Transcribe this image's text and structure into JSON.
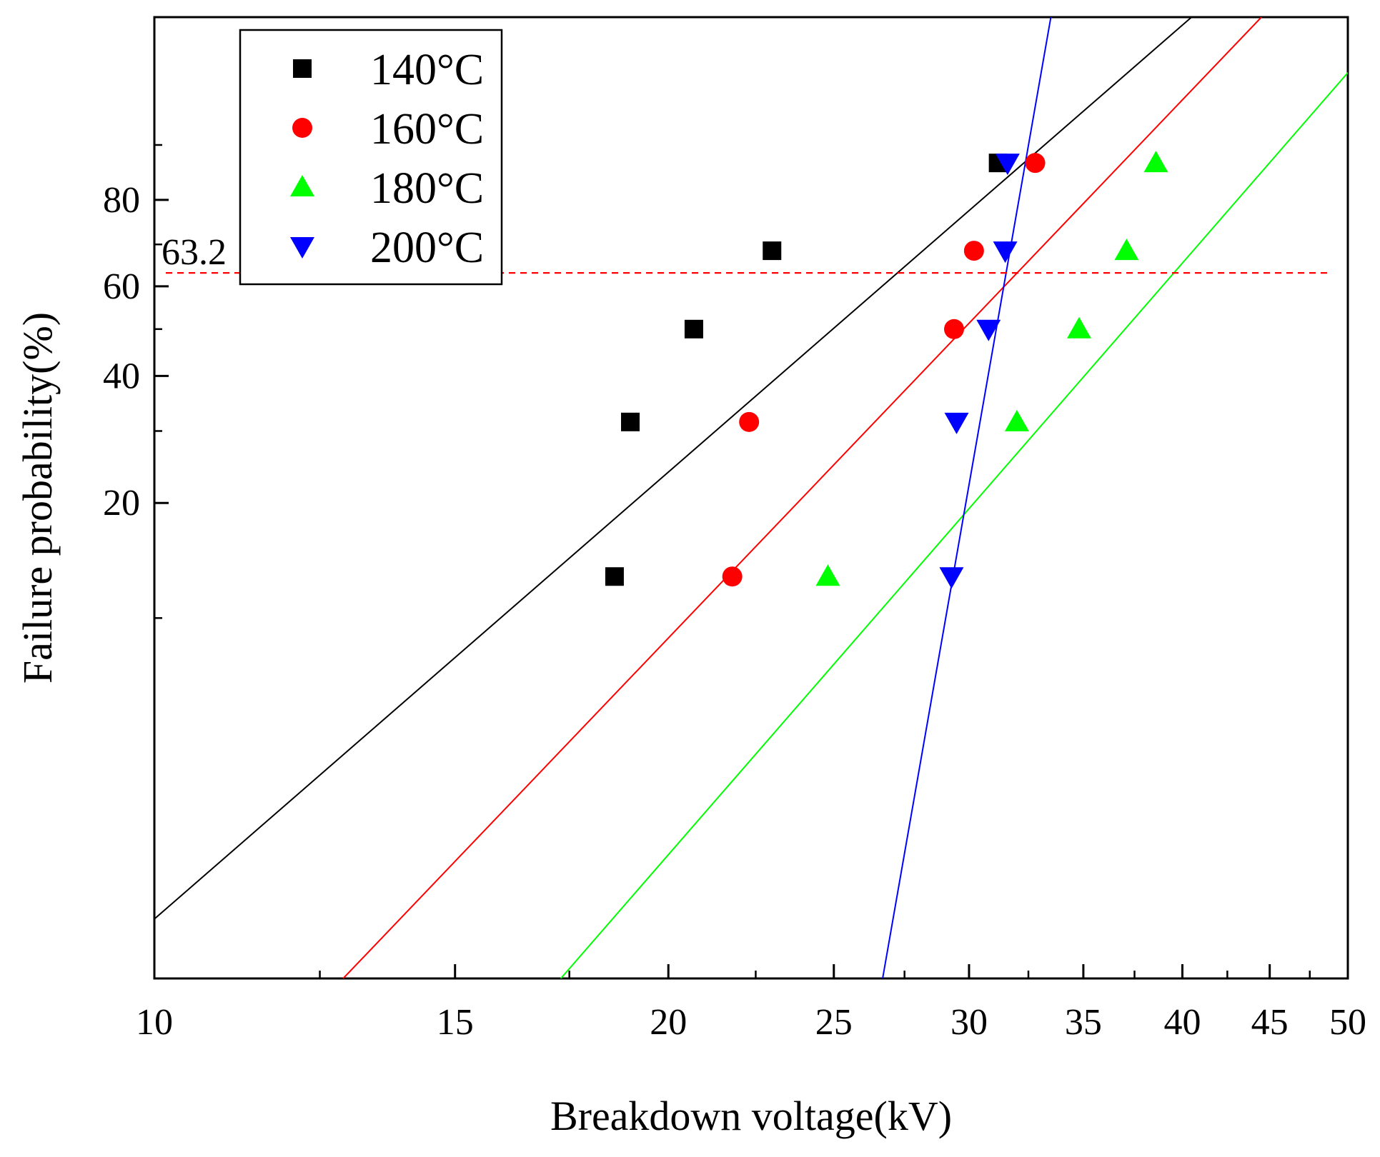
{
  "chart_data": {
    "type": "scatter",
    "title": "",
    "xlabel": "Breakdown voltage(kV)",
    "ylabel": "Failure probability(%)",
    "x_scale": "log",
    "y_scale": "weibull",
    "xlim": [
      10,
      50
    ],
    "ylim": [
      1,
      99.5
    ],
    "x_ticks": [
      10,
      15,
      20,
      25,
      30,
      35,
      40,
      45,
      50
    ],
    "x_tick_labels": [
      "10",
      "15",
      "20",
      "25",
      "30",
      "35",
      "40",
      "45",
      "50"
    ],
    "y_ticks": [
      20,
      40,
      60,
      80
    ],
    "y_tick_labels": [
      "20",
      "40",
      "60",
      "80"
    ],
    "reference_line": {
      "y": 63.2,
      "label": "63.2",
      "color": "#ff0000",
      "style": "dashed"
    },
    "legend_position": "top-left",
    "series": [
      {
        "name": "140°C",
        "marker": "square",
        "color": "#000000",
        "points": [
          [
            18.6,
            12.9
          ],
          [
            19.0,
            31.5
          ],
          [
            20.7,
            50.0
          ],
          [
            23.0,
            68.5
          ],
          [
            31.2,
            87.1
          ]
        ],
        "fit": [
          [
            10,
            1.47
          ],
          [
            40.5,
            99.5
          ]
        ]
      },
      {
        "name": "160°C",
        "marker": "circle",
        "color": "#ff0000",
        "points": [
          [
            21.8,
            12.9
          ],
          [
            22.3,
            31.5
          ],
          [
            29.4,
            50.0
          ],
          [
            30.2,
            68.5
          ],
          [
            32.8,
            87.1
          ]
        ],
        "fit": [
          [
            12.9,
            1.0
          ],
          [
            44.5,
            99.5
          ]
        ]
      },
      {
        "name": "180°C",
        "marker": "triangle-up",
        "color": "#00ff00",
        "points": [
          [
            24.8,
            12.9
          ],
          [
            32.0,
            31.5
          ],
          [
            34.8,
            50.0
          ],
          [
            37.1,
            68.5
          ],
          [
            38.6,
            87.1
          ]
        ],
        "fit": [
          [
            17.3,
            1.0
          ],
          [
            50,
            97.5
          ]
        ]
      },
      {
        "name": "200°C",
        "marker": "triangle-down",
        "color": "#0000ff",
        "points": [
          [
            29.3,
            12.9
          ],
          [
            29.5,
            31.5
          ],
          [
            30.8,
            50.0
          ],
          [
            31.5,
            68.5
          ],
          [
            31.6,
            87.1
          ]
        ],
        "fit": [
          [
            26.7,
            1.0
          ],
          [
            33.5,
            99.5
          ]
        ]
      }
    ]
  }
}
